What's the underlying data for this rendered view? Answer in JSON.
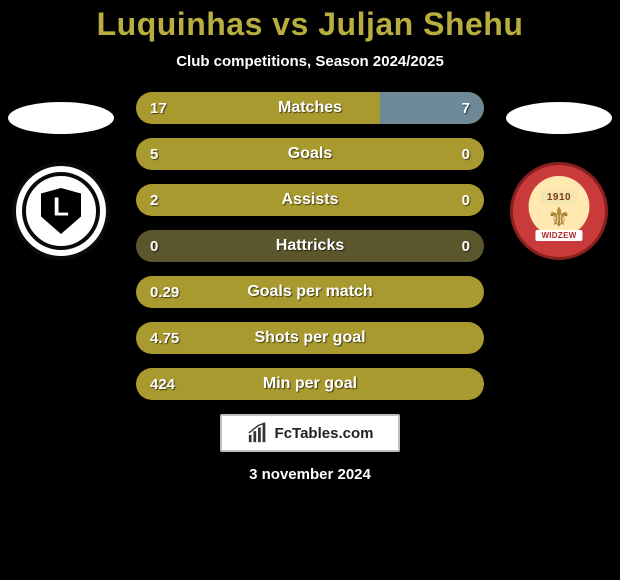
{
  "header": {
    "title_color": "#b7ae3f",
    "title_parts": {
      "player1": "Luquinhas",
      "vs": " vs ",
      "player2": "Juljan Shehu"
    },
    "subtitle": "Club competitions, Season 2024/2025"
  },
  "teams": {
    "left": {
      "name": "legia",
      "year": null
    },
    "right": {
      "name": "widzew",
      "year": "1910",
      "ribbon": "WIDZEW"
    }
  },
  "colors": {
    "track": "#5b562b",
    "fill_left": "#a89a2e",
    "fill_right": "#6e8a98",
    "fill_full": "#a89a2e",
    "background": "#000000"
  },
  "bars": [
    {
      "label": "Matches",
      "left_val": "17",
      "right_val": "7",
      "left_pct": 70,
      "right_pct": 30,
      "mode": "split"
    },
    {
      "label": "Goals",
      "left_val": "5",
      "right_val": "0",
      "left_pct": 100,
      "right_pct": 0,
      "mode": "split"
    },
    {
      "label": "Assists",
      "left_val": "2",
      "right_val": "0",
      "left_pct": 100,
      "right_pct": 0,
      "mode": "split"
    },
    {
      "label": "Hattricks",
      "left_val": "0",
      "right_val": "0",
      "left_pct": 0,
      "right_pct": 0,
      "mode": "track"
    },
    {
      "label": "Goals per match",
      "left_val": "0.29",
      "right_val": null,
      "left_pct": 100,
      "right_pct": 0,
      "mode": "full"
    },
    {
      "label": "Shots per goal",
      "left_val": "4.75",
      "right_val": null,
      "left_pct": 100,
      "right_pct": 0,
      "mode": "full"
    },
    {
      "label": "Min per goal",
      "left_val": "424",
      "right_val": null,
      "left_pct": 100,
      "right_pct": 0,
      "mode": "full"
    }
  ],
  "footer": {
    "brand": "FcTables.com",
    "date": "3 november 2024"
  }
}
